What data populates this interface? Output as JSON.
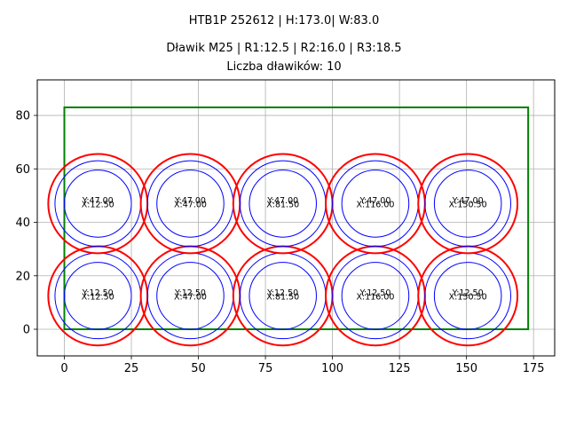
{
  "titles": {
    "line1": "HTB1P 252612 | H:173.0| W:83.0",
    "line2": "Dławik M25 | R1:12.5 | R2:16.0 | R3:18.5",
    "line3": "Liczba dławików: 10"
  },
  "colors": {
    "enclosure": "#008000",
    "r1": "#0000ff",
    "r2": "#0000ff",
    "r3": "#ff0000",
    "grid": "#b0b0b0"
  },
  "chart_data": {
    "type": "scatter",
    "title": "HTB1P 252612 | H:173.0| W:83.0 / Dławik M25 | R1:12.5 | R2:16.0 | R3:18.5 / Liczba dławików: 10",
    "xlabel": "",
    "ylabel": "",
    "xlim": [
      -10,
      183
    ],
    "ylim": [
      -10,
      93
    ],
    "xticks": [
      0,
      25,
      50,
      75,
      100,
      125,
      150,
      175
    ],
    "yticks": [
      0,
      20,
      40,
      60,
      80
    ],
    "grid": true,
    "enclosure": {
      "x": 0,
      "y": 0,
      "width": 173.0,
      "height": 83.0
    },
    "radii": {
      "R1": 12.5,
      "R2": 16.0,
      "R3": 18.5
    },
    "points": [
      {
        "x": 12.5,
        "y": 12.5,
        "label_x": "X:12.50",
        "label_y": "Y:12.50"
      },
      {
        "x": 47.0,
        "y": 12.5,
        "label_x": "X:47.00",
        "label_y": "Y:12.50"
      },
      {
        "x": 81.5,
        "y": 12.5,
        "label_x": "X:81.50",
        "label_y": "Y:12.50"
      },
      {
        "x": 116.0,
        "y": 12.5,
        "label_x": "X:116.00",
        "label_y": "Y:12.50"
      },
      {
        "x": 150.5,
        "y": 12.5,
        "label_x": "X:150.50",
        "label_y": "Y:12.50"
      },
      {
        "x": 12.5,
        "y": 47.0,
        "label_x": "X:12.50",
        "label_y": "Y:47.00"
      },
      {
        "x": 47.0,
        "y": 47.0,
        "label_x": "X:47.00",
        "label_y": "Y:47.00"
      },
      {
        "x": 81.5,
        "y": 47.0,
        "label_x": "X:81.50",
        "label_y": "Y:47.00"
      },
      {
        "x": 116.0,
        "y": 47.0,
        "label_x": "X:116.00",
        "label_y": "Y:47.00"
      },
      {
        "x": 150.5,
        "y": 47.0,
        "label_x": "X:150.50",
        "label_y": "Y:47.00"
      }
    ]
  }
}
